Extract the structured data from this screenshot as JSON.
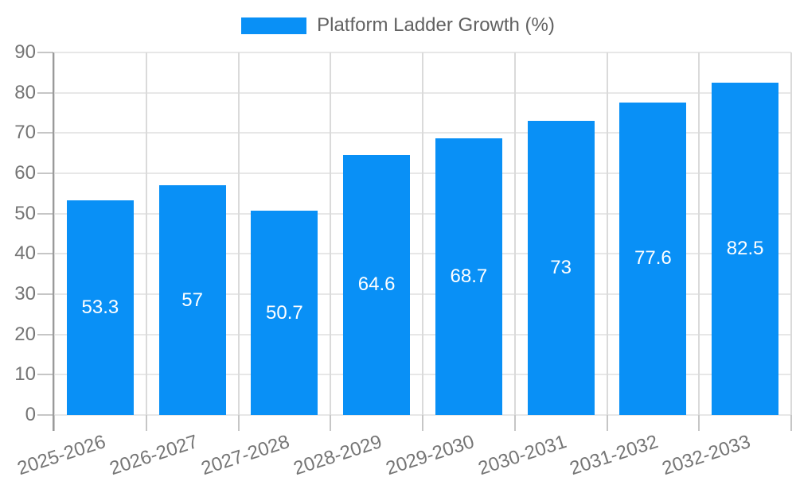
{
  "chart_data": {
    "type": "bar",
    "title": "Platform Ladder Growth (%)",
    "categories": [
      "2025-2026",
      "2026-2027",
      "2027-2028",
      "2028-2029",
      "2029-2030",
      "2030-2031",
      "2031-2032",
      "2032-2033"
    ],
    "values": [
      53.3,
      57,
      50.7,
      64.6,
      68.7,
      73,
      77.6,
      82.5
    ],
    "value_labels": [
      "53.3",
      "57",
      "50.7",
      "64.6",
      "68.7",
      "73",
      "77.6",
      "82.5"
    ],
    "xlabel": "",
    "ylabel": "",
    "ylim": [
      0,
      90
    ],
    "ytick_step": 10,
    "ytick_labels": [
      "0",
      "10",
      "20",
      "30",
      "40",
      "50",
      "60",
      "70",
      "80",
      "90"
    ],
    "grid": true,
    "legend_position": "top",
    "bar_color": "#0990f6",
    "value_label_color": "#ffffff"
  }
}
